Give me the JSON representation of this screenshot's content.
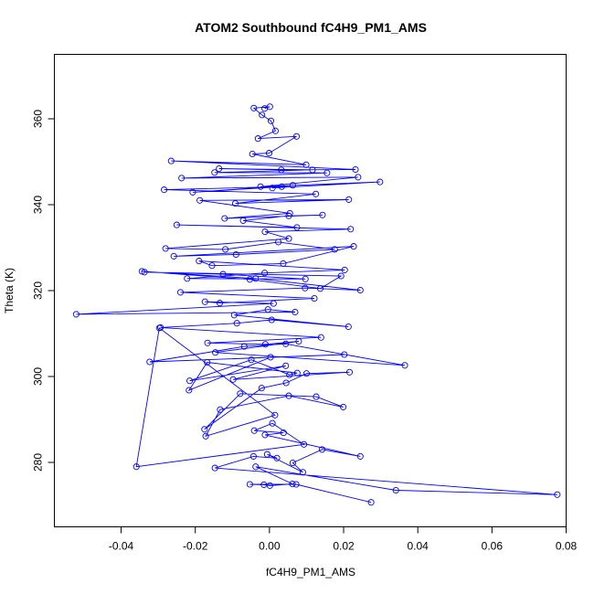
{
  "chart_data": {
    "type": "scatter",
    "title": "ATOM2 Southbound fC4H9_PM1_AMS",
    "xlabel": "fC4H9_PM1_AMS",
    "ylabel": "Theta (K)",
    "xlim": [
      -0.058,
      0.08
    ],
    "ylim": [
      265,
      375
    ],
    "xticks": [
      -0.04,
      -0.02,
      0.0,
      0.02,
      0.04,
      0.06,
      0.08
    ],
    "xtick_labels": [
      "-0.04",
      "-0.02",
      "0.00",
      "0.02",
      "0.04",
      "0.06",
      "0.08"
    ],
    "yticks": [
      280,
      300,
      320,
      340,
      360
    ],
    "ytick_labels": [
      "280",
      "300",
      "320",
      "340",
      "360"
    ],
    "grid": false,
    "style": "points-connected",
    "color": "#0000ff",
    "series": [
      {
        "x": [
          0.0274,
          0.0072,
          -0.0053,
          -0.0015,
          0.0001,
          0.0062,
          -0.0037,
          0.0341,
          0.0776,
          -0.0147,
          -0.0043,
          0.002,
          -0.0006,
          0.009,
          0.0063,
          0.0142,
          0.0245,
          -0.0012,
          0.0038,
          -0.0041,
          0.0008,
          0.0093,
          -0.0359,
          -0.0297,
          0.0015,
          -0.0172,
          -0.0133,
          0.0052,
          0.0199,
          0.0126,
          -0.0079,
          -0.0175,
          -0.0021,
          0.0045,
          0.01,
          0.0216,
          -0.0098,
          0.0044,
          -0.0215,
          -0.0049,
          0.0054,
          0.0075,
          -0.0168,
          -0.0217,
          0.0003,
          0.0202,
          -0.0323,
          -0.0068,
          0.0044,
          0.0365,
          -0.0146,
          0.0079,
          -0.0011,
          -0.0167,
          0.0139,
          -0.0294,
          -0.0088,
          0.0006,
          0.0213,
          -0.0095,
          -0.0004,
          0.0069,
          -0.0521,
          0.0011,
          -0.0174,
          -0.0134,
          0.0121,
          -0.024,
          0.0096,
          0.0245,
          -0.0037,
          -0.0344,
          -0.0053,
          0.0137,
          0.0193,
          -0.0337,
          -0.0125,
          0.0097,
          -0.0222,
          -0.0013,
          0.0203,
          -0.019,
          -0.0155,
          0.0037,
          0.0227,
          -0.0258,
          -0.009,
          0.0176,
          0.0024,
          -0.0119,
          -0.028,
          0.0052,
          -0.0012,
          0.0219,
          -0.025,
          0.0074,
          -0.0071,
          0.0052,
          0.0143,
          -0.0121,
          0.0055,
          -0.0188,
          0.0214,
          -0.0092,
          0.0125,
          -0.0284,
          0.0033,
          -0.0207,
          0.0063,
          0.0008,
          0.0298,
          -0.0024,
          0.0239,
          -0.0237,
          0.0155,
          -0.0148,
          0.0116,
          -0.0136,
          0.0032,
          0.0232,
          -0.0265,
          0.0099,
          -0.0046,
          -0.0001,
          0.0073,
          -0.0031,
          0.0016,
          0.0004,
          -0.002,
          -0.0042,
          0.0001,
          -0.0013
        ],
        "y": [
          270.7,
          274.9,
          274.9,
          274.8,
          274.6,
          275.0,
          279.0,
          273.5,
          272.5,
          278.7,
          281.4,
          281.0,
          281.9,
          277.7,
          279.9,
          283.0,
          281.4,
          286.4,
          286.9,
          287.4,
          289.1,
          284.2,
          279.0,
          311.3,
          291.0,
          286.1,
          292.3,
          295.5,
          292.9,
          295.3,
          296.0,
          287.7,
          297.3,
          298.5,
          300.7,
          301.0,
          299.3,
          302.5,
          299.0,
          303.9,
          300.4,
          300.8,
          303.3,
          296.8,
          304.5,
          305.1,
          303.4,
          307.0,
          307.6,
          302.6,
          305.6,
          308.2,
          307.5,
          307.8,
          309.1,
          311.4,
          312.4,
          313.2,
          311.6,
          314.3,
          315.6,
          315.0,
          314.5,
          317.0,
          317.4,
          317.1,
          318.2,
          319.6,
          320.6,
          320.1,
          322.8,
          324.5,
          322.6,
          320.5,
          323.4,
          324.3,
          323.8,
          322.7,
          322.8,
          324.1,
          324.8,
          326.9,
          325.8,
          326.3,
          330.3,
          328.0,
          328.4,
          329.6,
          331.3,
          329.6,
          329.8,
          332.1,
          333.7,
          334.3,
          335.3,
          334.7,
          336.3,
          337.4,
          337.6,
          336.8,
          338.0,
          341.0,
          341.2,
          340.3,
          342.5,
          343.5,
          344.2,
          342.9,
          344.5,
          343.9,
          345.3,
          344.2,
          346.4,
          346.2,
          347.4,
          347.5,
          348.1,
          348.4,
          348.1,
          348.2,
          350.2,
          349.3,
          351.8,
          352.0,
          355.9,
          355.4,
          357.2,
          359.5,
          360.9,
          362.5,
          362.8,
          362.4
        ]
      }
    ]
  }
}
